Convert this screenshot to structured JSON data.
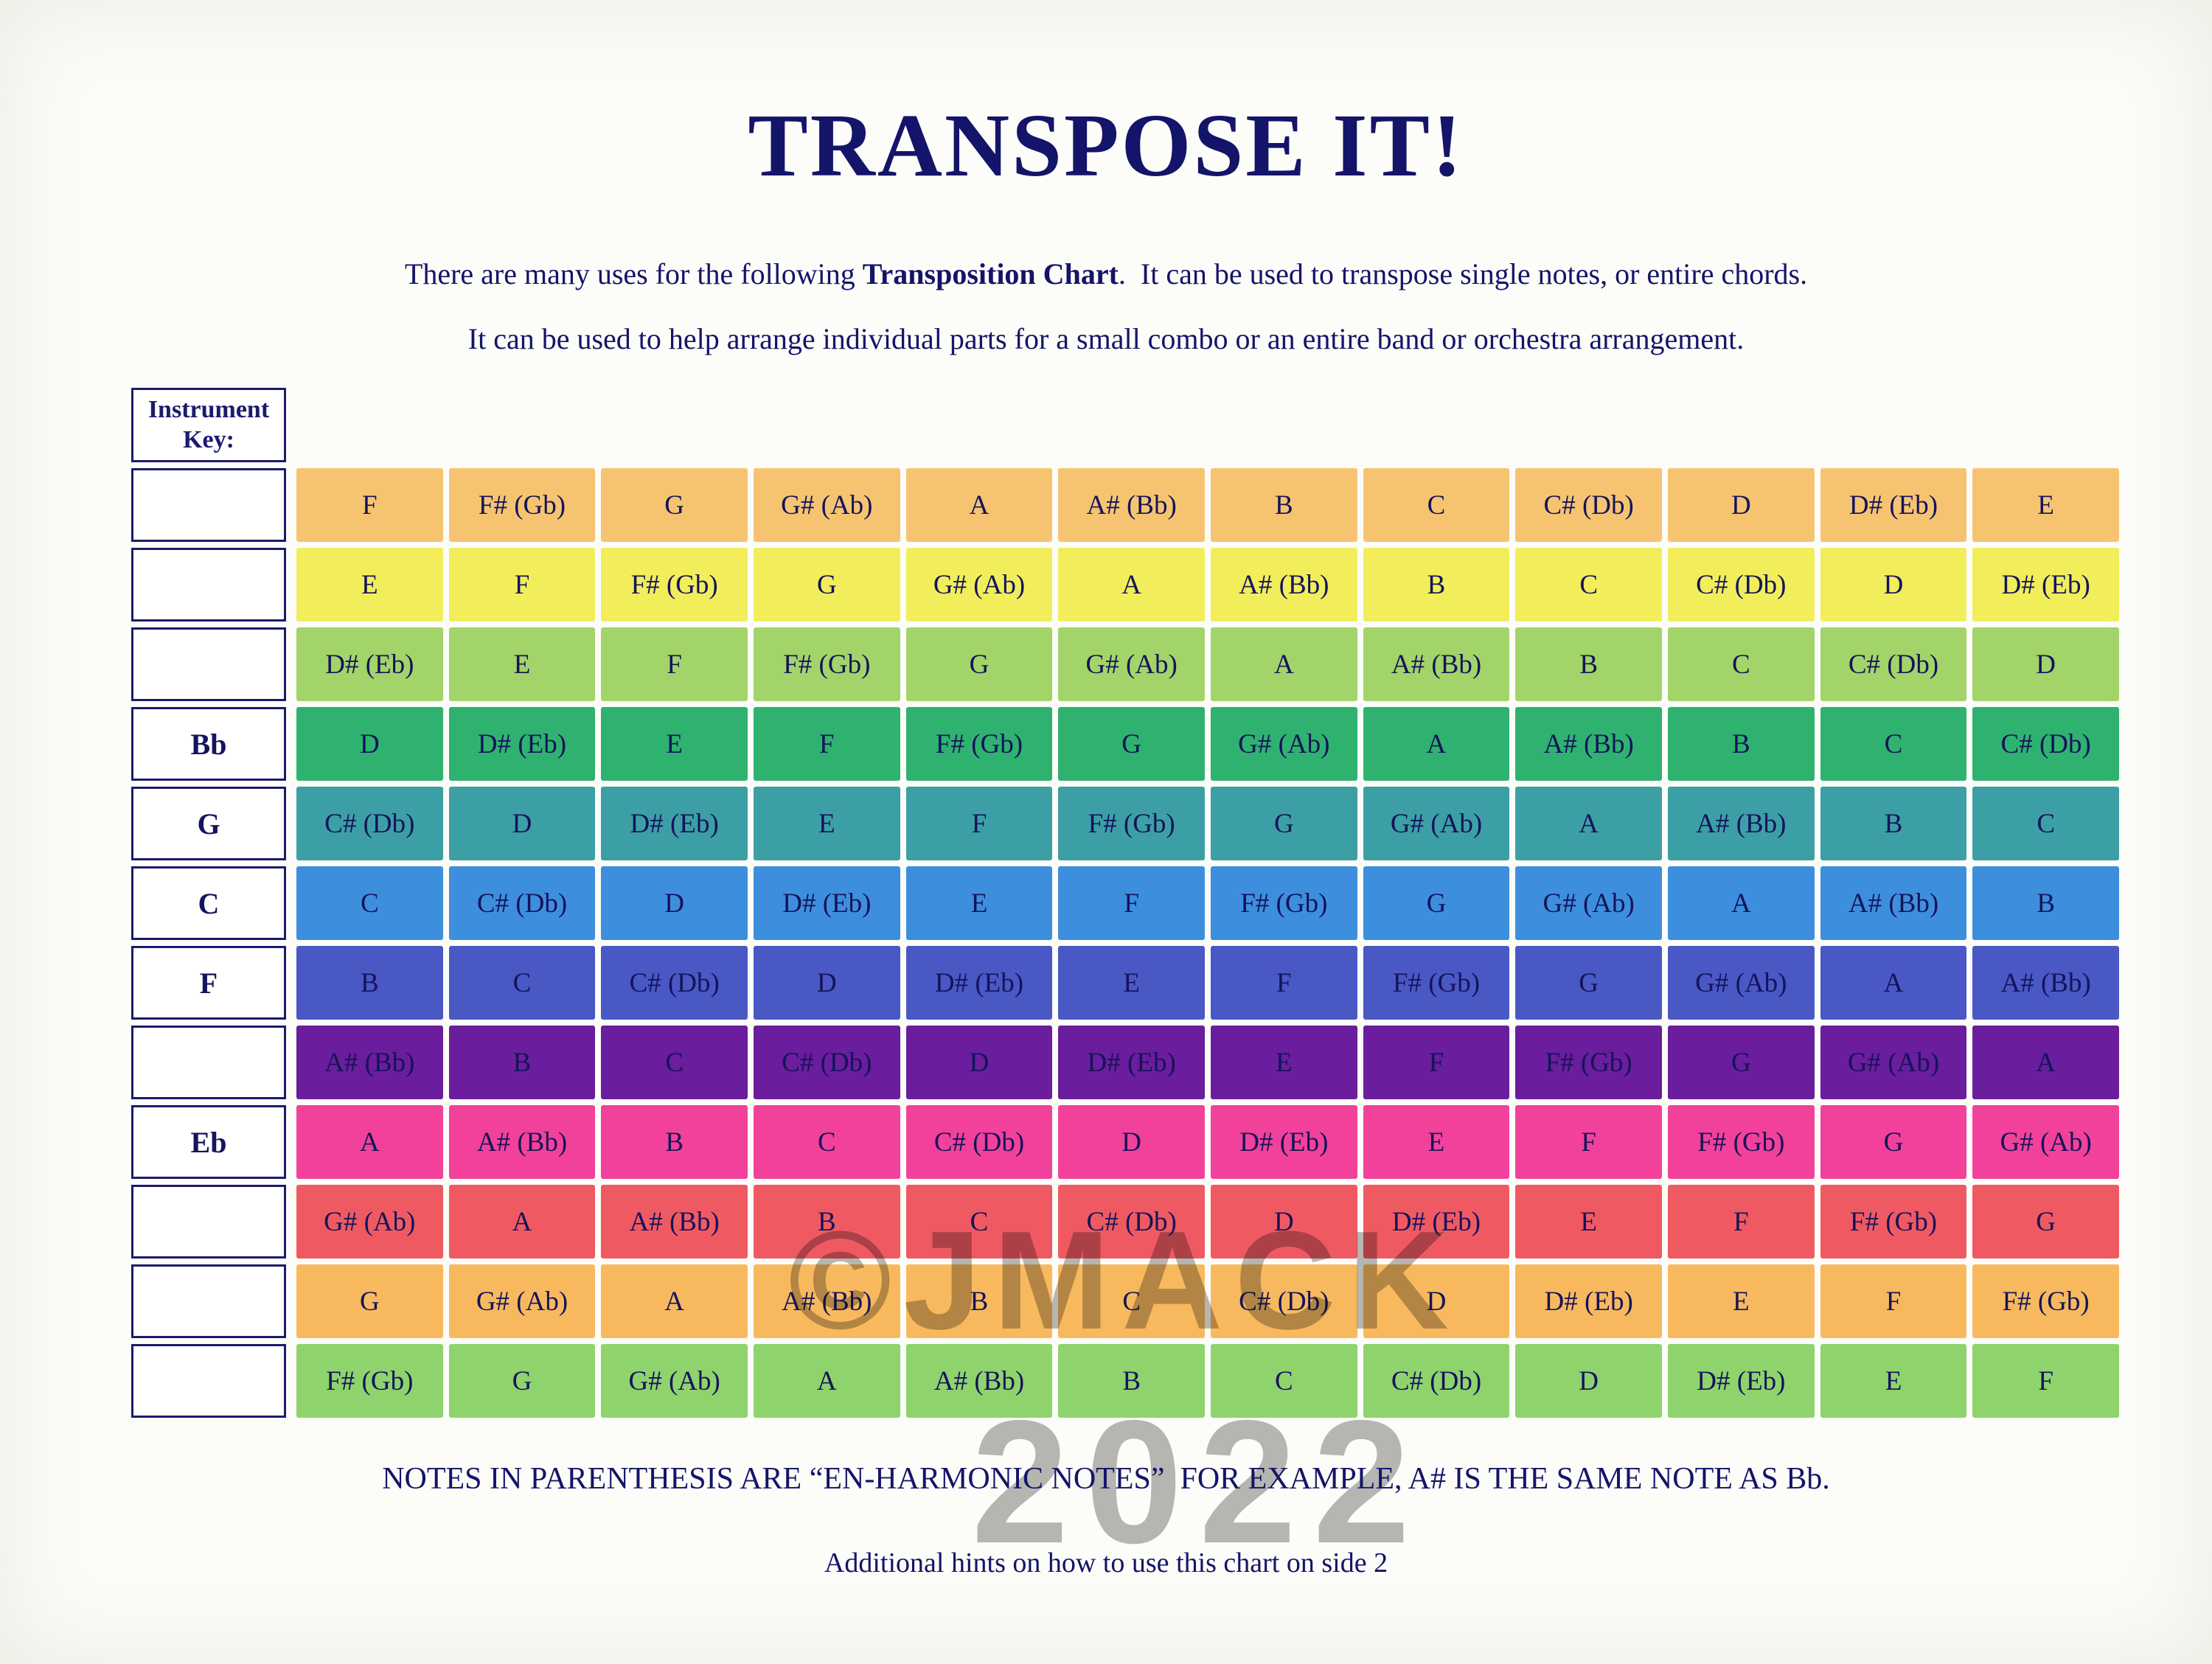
{
  "page": {
    "title": "TRANSPOSE IT!",
    "subtitle1_pre": "There are many uses for the following ",
    "subtitle1_bold": "Transposition Chart",
    "subtitle1_post": ".  It can be used to transpose single notes, or entire chords.",
    "subtitle2": "It can be used to help arrange individual parts for a small combo or an entire band or orchestra arrangement.",
    "watermark_line1": "©JMACK",
    "watermark_line2": "2022",
    "footer1": "NOTES IN PARENTHESIS ARE “EN-HARMONIC NOTES”  FOR EXAMPLE, A# IS THE SAME NOTE AS Bb.",
    "footer2": "Additional hints on how to use this chart on side 2"
  },
  "key_column": {
    "header": "Instrument Key:"
  },
  "chart_data": {
    "type": "table",
    "columns": 12,
    "rows": [
      {
        "instrument_key": "",
        "color": "#f6c471",
        "notes": [
          "F",
          "F# (Gb)",
          "G",
          "G# (Ab)",
          "A",
          "A# (Bb)",
          "B",
          "C",
          "C# (Db)",
          "D",
          "D# (Eb)",
          "E"
        ]
      },
      {
        "instrument_key": "",
        "color": "#f2ee5b",
        "notes": [
          "E",
          "F",
          "F# (Gb)",
          "G",
          "G# (Ab)",
          "A",
          "A# (Bb)",
          "B",
          "C",
          "C# (Db)",
          "D",
          "D# (Eb)"
        ]
      },
      {
        "instrument_key": "",
        "color": "#a3d469",
        "notes": [
          "D# (Eb)",
          "E",
          "F",
          "F# (Gb)",
          "G",
          "G# (Ab)",
          "A",
          "A# (Bb)",
          "B",
          "C",
          "C# (Db)",
          "D"
        ]
      },
      {
        "instrument_key": "Bb",
        "color": "#2fb270",
        "notes": [
          "D",
          "D# (Eb)",
          "E",
          "F",
          "F# (Gb)",
          "G",
          "G# (Ab)",
          "A",
          "A# (Bb)",
          "B",
          "C",
          "C# (Db)"
        ]
      },
      {
        "instrument_key": "G",
        "color": "#3d9fa6",
        "notes": [
          "C# (Db)",
          "D",
          "D# (Eb)",
          "E",
          "F",
          "F# (Gb)",
          "G",
          "G# (Ab)",
          "A",
          "A# (Bb)",
          "B",
          "C"
        ]
      },
      {
        "instrument_key": "C",
        "color": "#3e8ede",
        "notes": [
          "C",
          "C# (Db)",
          "D",
          "D# (Eb)",
          "E",
          "F",
          "F# (Gb)",
          "G",
          "G# (Ab)",
          "A",
          "A# (Bb)",
          "B"
        ]
      },
      {
        "instrument_key": "F",
        "color": "#4a58c6",
        "notes": [
          "B",
          "C",
          "C# (Db)",
          "D",
          "D# (Eb)",
          "E",
          "F",
          "F# (Gb)",
          "G",
          "G# (Ab)",
          "A",
          "A# (Bb)"
        ]
      },
      {
        "instrument_key": "",
        "color": "#6a1d9c",
        "notes": [
          "A# (Bb)",
          "B",
          "C",
          "C# (Db)",
          "D",
          "D# (Eb)",
          "E",
          "F",
          "F# (Gb)",
          "G",
          "G# (Ab)",
          "A"
        ]
      },
      {
        "instrument_key": "Eb",
        "color": "#f2419a",
        "notes": [
          "A",
          "A# (Bb)",
          "B",
          "C",
          "C# (Db)",
          "D",
          "D# (Eb)",
          "E",
          "F",
          "F# (Gb)",
          "G",
          "G# (Ab)"
        ]
      },
      {
        "instrument_key": "",
        "color": "#ef5a62",
        "notes": [
          "G# (Ab)",
          "A",
          "A# (Bb)",
          "B",
          "C",
          "C# (Db)",
          "D",
          "D# (Eb)",
          "E",
          "F",
          "F# (Gb)",
          "G"
        ]
      },
      {
        "instrument_key": "",
        "color": "#f8b95e",
        "notes": [
          "G",
          "G# (Ab)",
          "A",
          "A# (Bb)",
          "B",
          "C",
          "C# (Db)",
          "D",
          "D# (Eb)",
          "E",
          "F",
          "F# (Gb)"
        ]
      },
      {
        "instrument_key": "",
        "color": "#8fd36d",
        "notes": [
          "F# (Gb)",
          "G",
          "G# (Ab)",
          "A",
          "A# (Bb)",
          "B",
          "C",
          "C# (Db)",
          "D",
          "D# (Eb)",
          "E",
          "F"
        ]
      }
    ]
  }
}
